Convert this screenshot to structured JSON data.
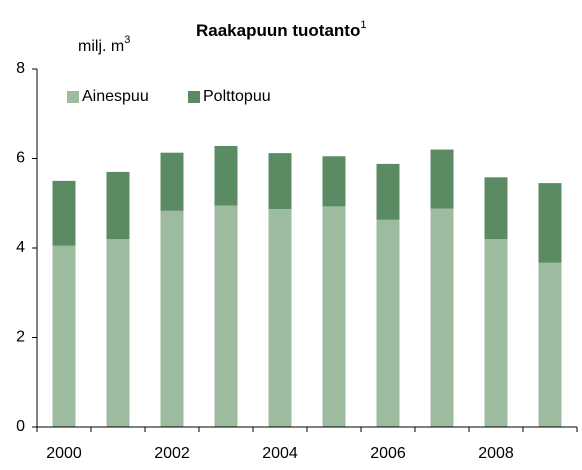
{
  "chart_data": {
    "type": "stacked_bar",
    "title": "Raakapuun tuotanto",
    "title_superscript": "1",
    "ylabel": "milj. m",
    "ylabel_superscript": "3",
    "categories": [
      "2000",
      null,
      "2002",
      null,
      "2004",
      null,
      "2006",
      null,
      "2008",
      null
    ],
    "series": [
      {
        "name": "Ainespuu",
        "color": "#9dbb9f",
        "values": [
          4.05,
          4.2,
          4.83,
          4.95,
          4.87,
          4.93,
          4.63,
          4.88,
          4.2,
          3.67
        ]
      },
      {
        "name": "Polttopuu",
        "color": "#5b8b63",
        "values": [
          1.45,
          1.5,
          1.3,
          1.33,
          1.25,
          1.12,
          1.25,
          1.32,
          1.38,
          1.78
        ]
      }
    ],
    "ylim": [
      0,
      8
    ],
    "yticks": [
      0,
      2,
      4,
      6,
      8
    ],
    "grid": false,
    "legend": "top-left"
  }
}
